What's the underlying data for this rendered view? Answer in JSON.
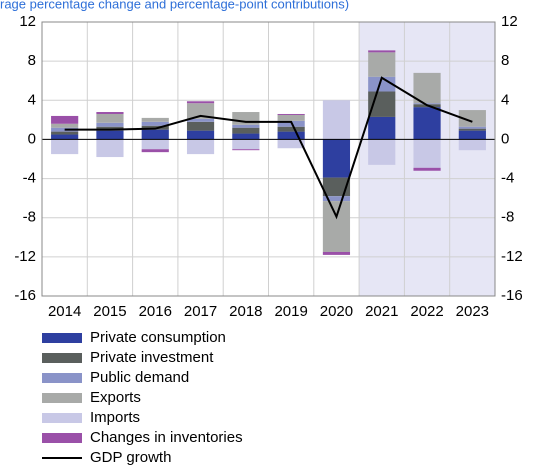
{
  "chart_data": {
    "type": "bar",
    "subtitle": "rage percentage change and percentage-point contributions)",
    "categories": [
      "2014",
      "2015",
      "2016",
      "2017",
      "2018",
      "2019",
      "2020",
      "2021",
      "2022",
      "2023"
    ],
    "shade_from": "2021",
    "shade_color": "#e6e6f5",
    "stacked": true,
    "grid": true,
    "ylim": [
      -16,
      12
    ],
    "yticks": [
      -16,
      -12,
      -8,
      -4,
      0,
      4,
      8,
      12
    ],
    "y2lim": [
      -16,
      12
    ],
    "y2ticks": [
      -16,
      -12,
      -8,
      -4,
      0,
      4,
      8,
      12
    ],
    "series": [
      {
        "name": "Private consumption",
        "color": "#2e3fa0",
        "values": [
          0.5,
          0.9,
          1.0,
          0.9,
          0.6,
          0.8,
          -3.9,
          2.3,
          3.3,
          0.9
        ]
      },
      {
        "name": "Private investment",
        "color": "#5a5f5d",
        "values": [
          0.3,
          0.4,
          0.4,
          0.9,
          0.6,
          0.5,
          -1.9,
          2.6,
          0.3,
          0.2
        ]
      },
      {
        "name": "Public demand",
        "color": "#8a93c8",
        "values": [
          0.4,
          0.4,
          0.4,
          0.3,
          0.3,
          0.6,
          -0.5,
          1.5,
          0.1,
          0.2
        ]
      },
      {
        "name": "Exports",
        "color": "#a8aaa8",
        "values": [
          0.4,
          0.9,
          0.4,
          1.6,
          1.3,
          0.6,
          -5.2,
          2.5,
          3.1,
          1.7
        ]
      },
      {
        "name": "Imports",
        "color": "#c8c8e6",
        "values": [
          -1.5,
          -1.8,
          -1.0,
          -1.5,
          -1.0,
          -0.9,
          4.0,
          -2.6,
          -2.9,
          -1.1
        ]
      },
      {
        "name": "Changes in inventories",
        "color": "#9a50a8",
        "values": [
          0.8,
          0.2,
          -0.3,
          0.2,
          -0.1,
          0.1,
          -0.3,
          0.2,
          -0.3,
          0.0
        ]
      },
      {
        "name": "GDP growth",
        "type": "line",
        "color": "#000000",
        "values": [
          1.0,
          1.0,
          1.1,
          2.4,
          1.8,
          1.8,
          -7.9,
          6.3,
          3.5,
          1.8
        ]
      }
    ]
  }
}
